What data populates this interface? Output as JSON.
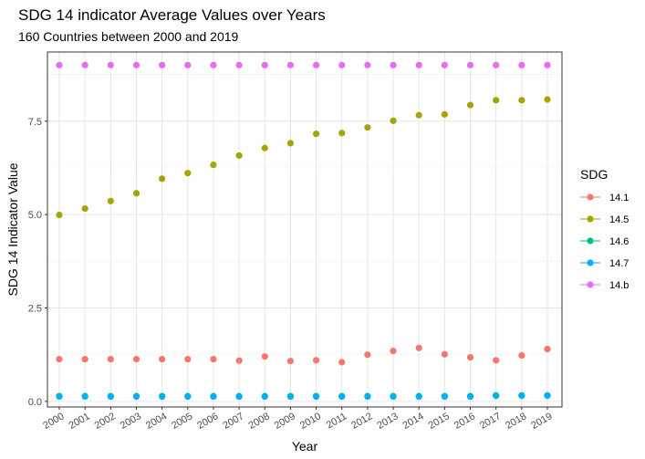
{
  "chart_data": {
    "type": "scatter",
    "title": "SDG 14 indicator Average Values over Years",
    "subtitle": "160 Countries between 2000 and 2019",
    "xlabel": "Year",
    "ylabel": "SDG 14 Indicator Value",
    "x": [
      "2000",
      "2001",
      "2002",
      "2003",
      "2004",
      "2005",
      "2006",
      "2007",
      "2008",
      "2009",
      "2010",
      "2011",
      "2012",
      "2013",
      "2014",
      "2015",
      "2016",
      "2017",
      "2018",
      "2019"
    ],
    "ylim": [
      -0.15,
      9.35
    ],
    "yticks": [
      0.0,
      2.5,
      5.0,
      7.5
    ],
    "ytick_labels": [
      "0.0",
      "2.5",
      "5.0",
      "7.5"
    ],
    "grid": true,
    "legend": {
      "title": "SDG",
      "placement": "right"
    },
    "series": [
      {
        "name": "14.1",
        "color": "#F8766D",
        "values": [
          1.13,
          1.13,
          1.13,
          1.13,
          1.13,
          1.13,
          1.13,
          1.09,
          1.2,
          1.08,
          1.1,
          1.05,
          1.25,
          1.35,
          1.43,
          1.26,
          1.18,
          1.1,
          1.23,
          1.4
        ]
      },
      {
        "name": "14.5",
        "color": "#A3A500",
        "values": [
          4.99,
          5.16,
          5.36,
          5.57,
          5.96,
          6.11,
          6.33,
          6.58,
          6.78,
          6.91,
          7.16,
          7.18,
          7.33,
          7.51,
          7.66,
          7.68,
          7.93,
          8.06,
          8.06,
          8.08
        ]
      },
      {
        "name": "14.6",
        "color": "#00BF7D",
        "values": [
          0.14,
          0.14,
          0.14,
          0.14,
          0.14,
          0.14,
          0.14,
          0.14,
          0.14,
          0.14,
          0.14,
          0.14,
          0.14,
          0.14,
          0.14,
          0.14,
          0.14,
          0.16,
          0.16,
          0.16
        ]
      },
      {
        "name": "14.7",
        "color": "#00B0F6",
        "values": [
          0.13,
          0.13,
          0.13,
          0.13,
          0.13,
          0.13,
          0.13,
          0.13,
          0.13,
          0.13,
          0.13,
          0.13,
          0.13,
          0.13,
          0.13,
          0.13,
          0.13,
          0.15,
          0.15,
          0.15
        ]
      },
      {
        "name": "14.b",
        "color": "#E76BF3",
        "values": [
          9.0,
          9.0,
          9.0,
          9.0,
          9.0,
          9.0,
          9.0,
          9.0,
          9.0,
          9.0,
          9.0,
          9.0,
          9.0,
          9.0,
          9.0,
          9.0,
          9.0,
          9.0,
          9.0,
          9.0
        ]
      }
    ]
  }
}
